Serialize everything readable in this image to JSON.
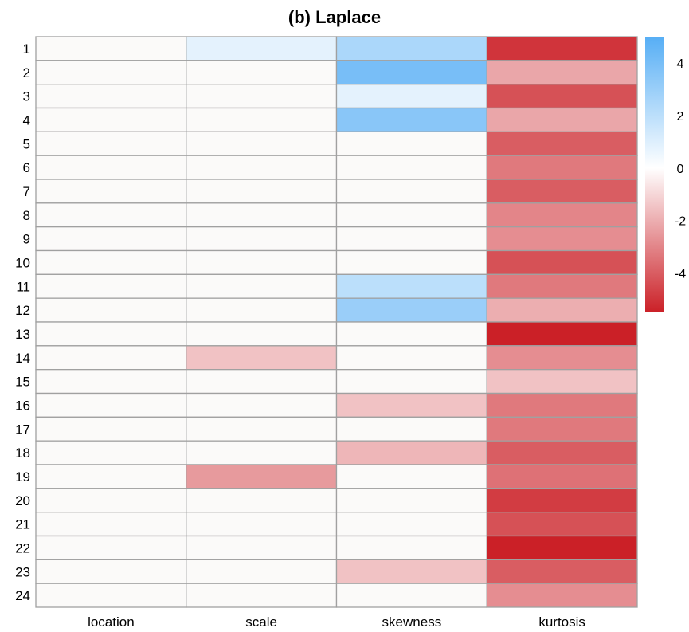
{
  "chart_data": {
    "type": "heatmap",
    "title": "(b)  Laplace",
    "columns": [
      "location",
      "scale",
      "skewness",
      "kurtosis"
    ],
    "rows": [
      "1",
      "2",
      "3",
      "4",
      "5",
      "6",
      "7",
      "8",
      "9",
      "10",
      "11",
      "12",
      "13",
      "14",
      "15",
      "16",
      "17",
      "18",
      "19",
      "20",
      "21",
      "22",
      "23",
      "24"
    ],
    "values": [
      [
        0,
        0.8,
        2.5,
        -5.0
      ],
      [
        0,
        0,
        4.0,
        -2.2
      ],
      [
        0,
        0,
        0.8,
        -4.3
      ],
      [
        0,
        0,
        3.5,
        -2.2
      ],
      [
        0,
        0,
        0,
        -4.0
      ],
      [
        0,
        0,
        0,
        -3.3
      ],
      [
        0,
        0,
        0,
        -4.0
      ],
      [
        0,
        0,
        0,
        -3.0
      ],
      [
        0,
        0,
        0,
        -2.8
      ],
      [
        0,
        0,
        0,
        -4.3
      ],
      [
        0,
        0,
        2.0,
        -3.3
      ],
      [
        0,
        0,
        3.0,
        -2.0
      ],
      [
        0,
        0,
        0,
        -5.5
      ],
      [
        0,
        -1.5,
        0,
        -2.8
      ],
      [
        0,
        0,
        0,
        -1.5
      ],
      [
        0,
        0,
        -1.5,
        -3.3
      ],
      [
        0,
        0,
        0,
        -3.3
      ],
      [
        0,
        0,
        -1.8,
        -4.0
      ],
      [
        0,
        -2.5,
        0,
        -3.5
      ],
      [
        0,
        0,
        0,
        -4.8
      ],
      [
        0,
        0,
        0,
        -4.3
      ],
      [
        0,
        0,
        0,
        -5.5
      ],
      [
        0,
        0,
        -1.5,
        -4.0
      ],
      [
        0,
        0,
        0,
        -2.8
      ]
    ],
    "colorbar": {
      "ticks": [
        4,
        2,
        0,
        -2,
        -4
      ],
      "range": [
        -5.5,
        5
      ],
      "low_color": "#CB2027",
      "mid_color": "#FFFFFF",
      "high_color": "#56AEF5",
      "empty_color": "#FBFAF9"
    },
    "grid": true
  }
}
